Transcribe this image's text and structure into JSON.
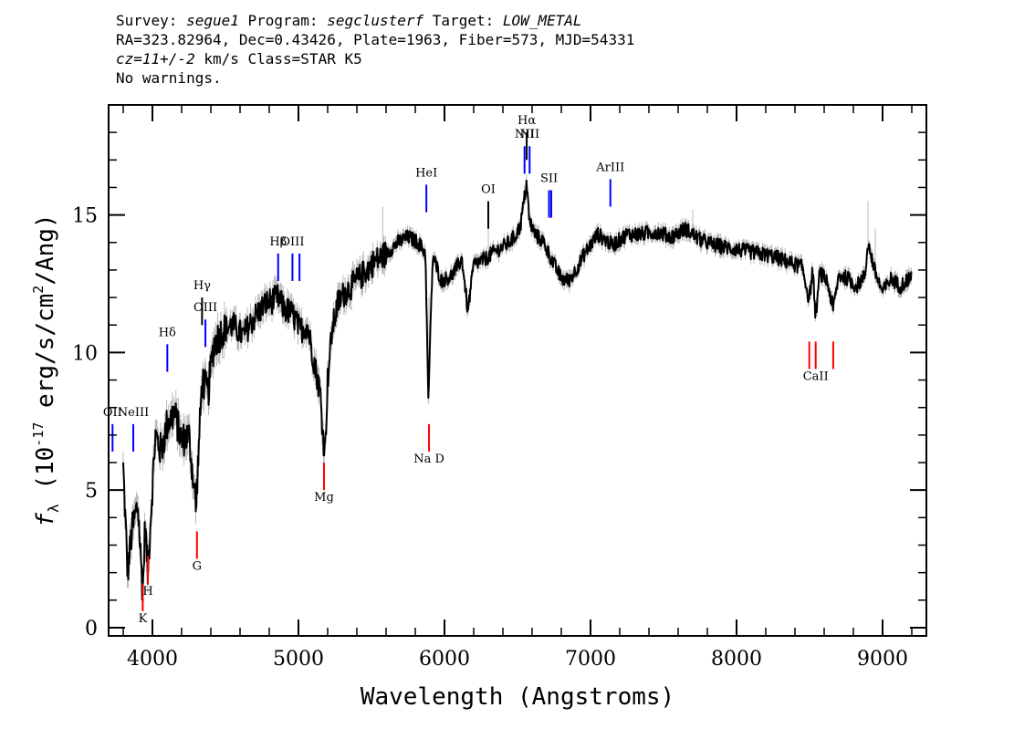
{
  "header": {
    "line1": {
      "survey_label": "Survey: ",
      "survey": "segue1",
      "program_label": " Program: ",
      "program": "segclusterf",
      "target_label": " Target: ",
      "target": "LOW_METAL"
    },
    "line2": "RA=323.82964, Dec=0.43426, Plate=1963, Fiber=573, MJD=54331",
    "line3": {
      "cz": "cz=11+/-2",
      "rest": " km/s Class=STAR K5"
    },
    "line4": "No warnings."
  },
  "chart_data": {
    "type": "line",
    "title": "",
    "xlabel": "Wavelength (Angstroms)",
    "ylabel": "f_λ (10^-17 erg/s/cm^2/Ang)",
    "xlim": [
      3700,
      9300
    ],
    "ylim": [
      -0.3,
      19
    ],
    "xticks": [
      4000,
      5000,
      6000,
      7000,
      8000,
      9000
    ],
    "yticks": [
      0,
      5,
      10,
      15
    ],
    "xtick_labels": [
      "4000",
      "5000",
      "6000",
      "7000",
      "8000",
      "9000"
    ],
    "ytick_labels": [
      "0",
      "5",
      "10",
      "15"
    ],
    "grid": false,
    "series": [
      {
        "color": "#000000",
        "x": [
          3800,
          3830,
          3860,
          3900,
          3934,
          3950,
          3968,
          3990,
          4020,
          4060,
          4100,
          4150,
          4200,
          4250,
          4300,
          4305,
          4340,
          4380,
          4420,
          4480,
          4550,
          4620,
          4700,
          4780,
          4861,
          4900,
          4960,
          5010,
          5060,
          5110,
          5150,
          5170,
          5183,
          5200,
          5230,
          5270,
          5320,
          5380,
          5450,
          5520,
          5600,
          5680,
          5750,
          5820,
          5870,
          5890,
          5896,
          5920,
          5980,
          6050,
          6120,
          6160,
          6200,
          6280,
          6350,
          6420,
          6480,
          6520,
          6563,
          6580,
          6620,
          6680,
          6750,
          6800,
          6850,
          6900,
          6960,
          7050,
          7150,
          7250,
          7350,
          7450,
          7550,
          7650,
          7750,
          7850,
          7950,
          8050,
          8150,
          8250,
          8350,
          8450,
          8498,
          8520,
          8542,
          8570,
          8620,
          8662,
          8700,
          8760,
          8820,
          8880,
          8900,
          8950,
          9000,
          9060,
          9120,
          9200
        ],
        "y": [
          5.8,
          2.0,
          3.5,
          4.5,
          1.2,
          3.8,
          2.0,
          4.2,
          7.0,
          6.4,
          7.4,
          7.8,
          6.8,
          7.0,
          4.3,
          5.2,
          9.0,
          8.5,
          10.3,
          10.8,
          11.0,
          10.6,
          11.3,
          11.8,
          12.0,
          11.6,
          11.4,
          10.8,
          11.0,
          9.6,
          8.5,
          6.8,
          6.5,
          9.0,
          10.8,
          11.8,
          12.2,
          12.5,
          12.9,
          13.3,
          13.6,
          14.0,
          14.2,
          14.0,
          13.6,
          8.0,
          9.5,
          13.5,
          12.6,
          12.8,
          13.4,
          11.5,
          13.2,
          13.4,
          13.7,
          13.9,
          14.2,
          14.6,
          16.2,
          14.8,
          14.3,
          14.0,
          13.2,
          12.7,
          12.6,
          13.0,
          13.6,
          14.3,
          13.9,
          14.3,
          14.3,
          14.4,
          14.2,
          14.5,
          14.1,
          13.9,
          13.8,
          13.7,
          13.6,
          13.5,
          13.3,
          13.1,
          11.9,
          13.0,
          11.3,
          12.9,
          12.6,
          11.6,
          12.8,
          12.7,
          12.4,
          12.8,
          14.0,
          12.9,
          12.2,
          12.7,
          12.4,
          12.8
        ]
      }
    ],
    "lines": [
      {
        "label": "OII",
        "x": 3727,
        "y0": 6.4,
        "y1": 7.4,
        "color": "#0000ff",
        "label_y": 7.7
      },
      {
        "label": "NeIII",
        "x": 3869,
        "y0": 6.4,
        "y1": 7.4,
        "color": "#0000ff",
        "label_y": 7.7
      },
      {
        "label": "Hδ",
        "x": 4102,
        "y0": 9.3,
        "y1": 10.3,
        "color": "#0000ff",
        "label_y": 10.6
      },
      {
        "label": "Hγ",
        "x": 4340,
        "y0": 11.0,
        "y1": 12.0,
        "color": "#000000",
        "label_y": 12.3
      },
      {
        "label": "OIII",
        "x": 4363,
        "y0": 10.2,
        "y1": 11.2,
        "color": "#0000ff",
        "label_y": 11.5
      },
      {
        "label": "Hβ",
        "x": 4861,
        "y0": 12.6,
        "y1": 13.6,
        "color": "#0000ff",
        "label_y": 13.9
      },
      {
        "label": "OIII",
        "x": 4959,
        "y0": 12.6,
        "y1": 13.6,
        "color": "#0000ff",
        "label_y": 13.9
      },
      {
        "label": "",
        "x": 5007,
        "y0": 12.6,
        "y1": 13.6,
        "color": "#0000ff",
        "label_y": 13.9
      },
      {
        "label": "HeI",
        "x": 5876,
        "y0": 15.1,
        "y1": 16.1,
        "color": "#0000ff",
        "label_y": 16.4
      },
      {
        "label": "OI",
        "x": 6300,
        "y0": 14.5,
        "y1": 15.5,
        "color": "#000000",
        "label_y": 15.8
      },
      {
        "label": "NII",
        "x": 6548,
        "y0": 16.5,
        "y1": 17.5,
        "color": "#0000ff",
        "label_y": 17.8
      },
      {
        "label": "Hα",
        "x": 6563,
        "y0": 17.0,
        "y1": 18.0,
        "color": "#000000",
        "label_y": 18.3
      },
      {
        "label": "NII",
        "x": 6583,
        "y0": 16.5,
        "y1": 17.5,
        "color": "#0000ff",
        "label_y": 17.8
      },
      {
        "label": "SII",
        "x": 6716,
        "y0": 14.9,
        "y1": 15.9,
        "color": "#0000ff",
        "label_y": 16.2
      },
      {
        "label": "",
        "x": 6731,
        "y0": 14.9,
        "y1": 15.9,
        "color": "#0000ff",
        "label_y": 16.2
      },
      {
        "label": "ArIII",
        "x": 7136,
        "y0": 15.3,
        "y1": 16.3,
        "color": "#0000ff",
        "label_y": 16.6
      },
      {
        "label": "K",
        "x": 3934,
        "y0": 0.6,
        "y1": 1.6,
        "color": "#ff0000",
        "label_y": 0.2
      },
      {
        "label": "H",
        "x": 3969,
        "y0": 1.6,
        "y1": 2.6,
        "color": "#ff0000",
        "label_y": 1.2
      },
      {
        "label": "G",
        "x": 4305,
        "y0": 2.5,
        "y1": 3.5,
        "color": "#ff0000",
        "label_y": 2.1
      },
      {
        "label": "Mg",
        "x": 5175,
        "y0": 5.0,
        "y1": 6.0,
        "color": "#ff0000",
        "label_y": 4.6
      },
      {
        "label": "Na D",
        "x": 5894,
        "y0": 6.4,
        "y1": 7.4,
        "color": "#ff0000",
        "label_y": 6.0
      },
      {
        "label": "",
        "x": 8498,
        "y0": 9.4,
        "y1": 10.4,
        "color": "#ff0000",
        "label_y": 9.0
      },
      {
        "label": "CaII",
        "x": 8542,
        "y0": 9.4,
        "y1": 10.4,
        "color": "#ff0000",
        "label_y": 9.0
      },
      {
        "label": "",
        "x": 8662,
        "y0": 9.4,
        "y1": 10.4,
        "color": "#ff0000",
        "label_y": 9.0
      }
    ]
  }
}
